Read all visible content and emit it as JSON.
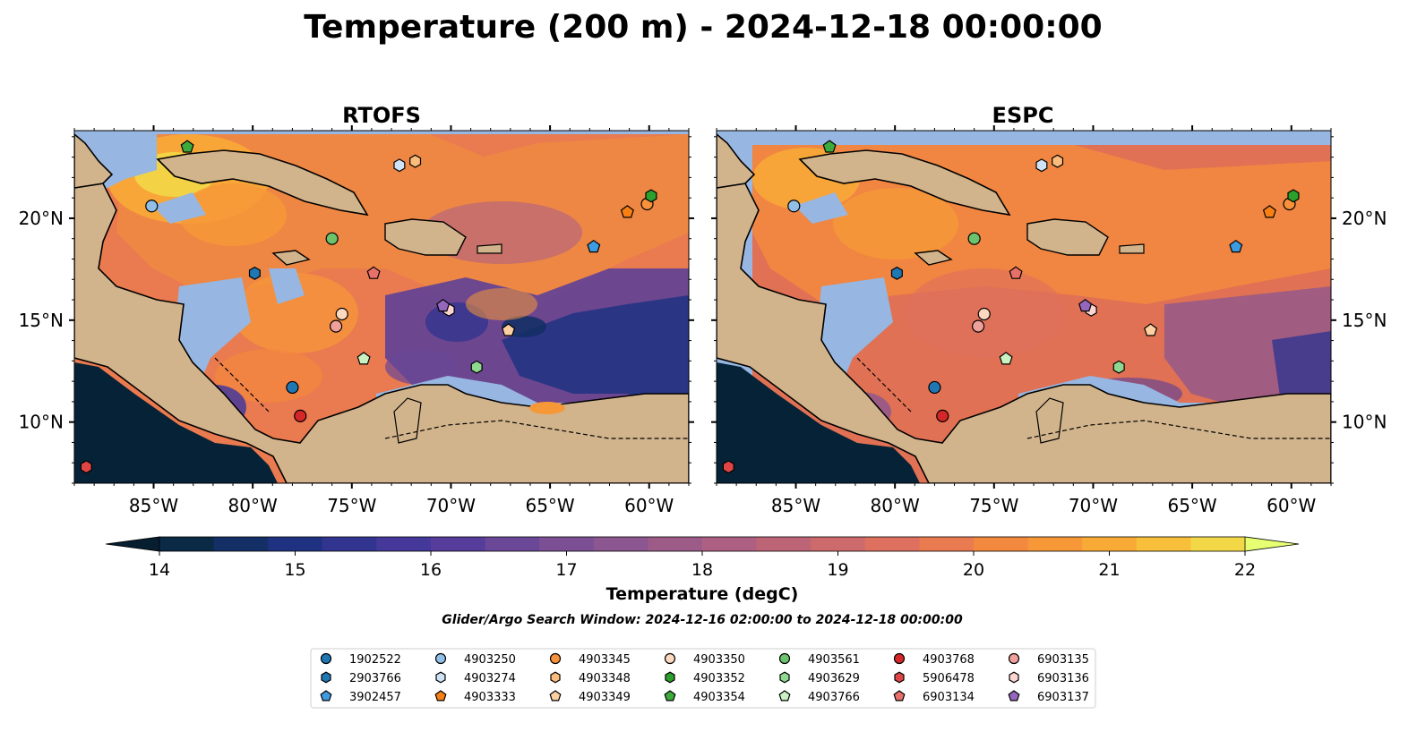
{
  "title": "Temperature (200 m) - 2024-12-18 00:00:00",
  "colorbar": {
    "label": "Temperature (degC)",
    "ticks": [
      14,
      15,
      16,
      17,
      18,
      19,
      20,
      21,
      22
    ],
    "min": 14,
    "max": 22,
    "step": 0.5,
    "colors": [
      "#0a2a45",
      "#142f66",
      "#1f3282",
      "#32358f",
      "#44399a",
      "#573d9b",
      "#6a4797",
      "#7c4f95",
      "#8c5690",
      "#9d5b88",
      "#ad6082",
      "#bd6577",
      "#cd6a6b",
      "#dd705e",
      "#ea7a4f",
      "#f3883f",
      "#f69838",
      "#f8aa36",
      "#f7bf3a",
      "#f2d847"
    ],
    "under_color": "#071e31",
    "over_color": "#e6ff73"
  },
  "subtitle": "Glider/Argo Search Window: 2024-12-16 02:00:00 to 2024-12-18 00:00:00",
  "map_extent": {
    "lon": [
      -89,
      -58
    ],
    "lat": [
      7,
      24.3
    ]
  },
  "xticks": [
    {
      "lon": -85,
      "label": "85°W"
    },
    {
      "lon": -80,
      "label": "80°W"
    },
    {
      "lon": -75,
      "label": "75°W"
    },
    {
      "lon": -70,
      "label": "70°W"
    },
    {
      "lon": -65,
      "label": "65°W"
    },
    {
      "lon": -60,
      "label": "60°W"
    }
  ],
  "yticks": [
    {
      "lat": 10,
      "label": "10°N"
    },
    {
      "lat": 15,
      "label": "15°N"
    },
    {
      "lat": 20,
      "label": "20°N"
    }
  ],
  "panels": [
    {
      "title": "RTOFS"
    },
    {
      "title": "ESPC"
    }
  ],
  "colors": {
    "land": "#d2b48c",
    "shallow": "#97b6e1",
    "deep": "#062236"
  },
  "chart_data": {
    "type": "scatter",
    "title": "Temperature (200 m) - 2024-12-18 00:00:00",
    "xlabel": "",
    "ylabel": "",
    "xlim": [
      -89,
      -58
    ],
    "ylim": [
      7,
      24.3
    ],
    "series": [
      {
        "name": "1902522",
        "marker": "circle",
        "color": "#1f77b4",
        "lon": -78.0,
        "lat": 11.7
      },
      {
        "name": "2903766",
        "marker": "hexagon",
        "color": "#1f77b4",
        "lon": -79.9,
        "lat": 17.3
      },
      {
        "name": "3902457",
        "marker": "pentagon",
        "color": "#3d9be0",
        "lon": -62.8,
        "lat": 18.6
      },
      {
        "name": "4903250",
        "marker": "circle",
        "color": "#92bfe8",
        "lon": -85.1,
        "lat": 20.6
      },
      {
        "name": "4903274",
        "marker": "hexagon",
        "color": "#cfe3f7",
        "lon": -72.6,
        "lat": 22.6
      },
      {
        "name": "4903333",
        "marker": "pentagon",
        "color": "#f77f14",
        "lon": -61.1,
        "lat": 20.3
      },
      {
        "name": "4903345",
        "marker": "circle",
        "color": "#f8913a",
        "lon": -60.1,
        "lat": 20.7
      },
      {
        "name": "4903348",
        "marker": "hexagon",
        "color": "#fbbc7c",
        "lon": -71.8,
        "lat": 22.8
      },
      {
        "name": "4903349",
        "marker": "pentagon",
        "color": "#fdd0a2",
        "lon": -67.1,
        "lat": 14.5
      },
      {
        "name": "4903350",
        "marker": "circle",
        "color": "#fdd9bf",
        "lon": -75.5,
        "lat": 15.3
      },
      {
        "name": "4903352",
        "marker": "hexagon",
        "color": "#2ca02c",
        "lon": -59.9,
        "lat": 21.1
      },
      {
        "name": "4903354",
        "marker": "pentagon",
        "color": "#3cab3c",
        "lon": -83.3,
        "lat": 23.5
      },
      {
        "name": "4903561",
        "marker": "circle",
        "color": "#6cc36c",
        "lon": -76.0,
        "lat": 19.0
      },
      {
        "name": "4903629",
        "marker": "hexagon",
        "color": "#8fd88f",
        "lon": -68.7,
        "lat": 12.7
      },
      {
        "name": "4903766",
        "marker": "pentagon",
        "color": "#c9f1c2",
        "lon": -74.4,
        "lat": 13.1
      },
      {
        "name": "4903768",
        "marker": "circle",
        "color": "#d62728",
        "lon": -77.6,
        "lat": 10.3
      },
      {
        "name": "5906478",
        "marker": "hexagon",
        "color": "#e04545",
        "lon": -88.4,
        "lat": 7.8
      },
      {
        "name": "6903134",
        "marker": "pentagon",
        "color": "#e8706a",
        "lon": -73.9,
        "lat": 17.3
      },
      {
        "name": "6903135",
        "marker": "circle",
        "color": "#f0a09a",
        "lon": -75.8,
        "lat": 14.7
      },
      {
        "name": "6903136",
        "marker": "hexagon",
        "color": "#fcd5d2",
        "lon": -70.1,
        "lat": 15.5
      },
      {
        "name": "6903137",
        "marker": "pentagon",
        "color": "#9467bd",
        "lon": -70.4,
        "lat": 15.7
      }
    ]
  }
}
